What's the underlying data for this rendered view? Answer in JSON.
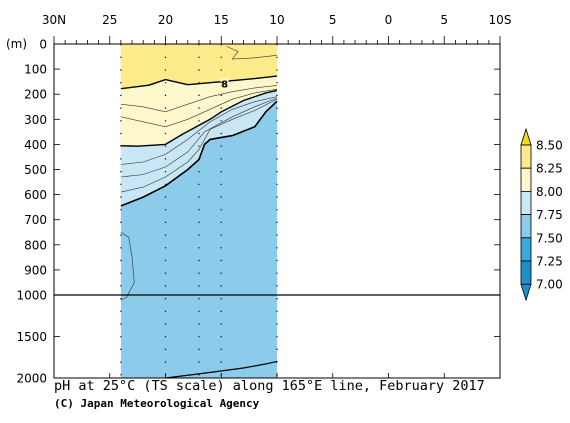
{
  "chart_data": {
    "type": "heatmap",
    "title": "pH at 25°C (TS scale) along 165°E line, February 2017",
    "credit": "(C) Japan Meteorological Agency",
    "y_unit_label": "(m)",
    "x_ticks": [
      "30N",
      "25",
      "20",
      "15",
      "10",
      "5",
      "0",
      "5",
      "10S"
    ],
    "x_range": [
      30,
      -10
    ],
    "y_upper_ticks": [
      0,
      100,
      200,
      300,
      400,
      500,
      600,
      700,
      800,
      900,
      1000
    ],
    "y_lower_ticks": [
      1000,
      1500,
      2000
    ],
    "y_range": [
      0,
      2000
    ],
    "data_extent_lat": [
      24,
      10
    ],
    "station_lats": [
      24,
      20,
      17,
      15,
      10
    ],
    "contour_label": "8",
    "colorbar": {
      "levels": [
        "7.00",
        "7.25",
        "7.50",
        "7.75",
        "8.00",
        "8.25",
        "8.50"
      ],
      "colors": [
        "#1e8fc8",
        "#3aa9dc",
        "#8ccbea",
        "#c8e6f5",
        "#fdf7cc",
        "#fbeb8a",
        "#f5d824"
      ]
    },
    "bands": [
      {
        "range": "8.25-8.50",
        "color": "#fbeb8a",
        "boundary_depth": [
          [
            24,
            178
          ],
          [
            21.5,
            164
          ],
          [
            20,
            142
          ],
          [
            18,
            162
          ],
          [
            15,
            150
          ],
          [
            12,
            138
          ],
          [
            10,
            128
          ]
        ]
      },
      {
        "range": "8.00-8.25",
        "color": "#fdf7cc",
        "boundary_depth": [
          [
            24,
            405
          ],
          [
            22.5,
            407
          ],
          [
            20,
            400
          ],
          [
            18.5,
            360
          ],
          [
            16,
            300
          ],
          [
            15,
            270
          ],
          [
            13,
            225
          ],
          [
            11,
            195
          ],
          [
            10,
            185
          ]
        ]
      },
      {
        "range": "7.75-8.00",
        "color": "#c8e6f5",
        "boundary_depth": [
          [
            24,
            645
          ],
          [
            22,
            610
          ],
          [
            20,
            565
          ],
          [
            18,
            500
          ],
          [
            17,
            460
          ],
          [
            16.5,
            400
          ],
          [
            16,
            380
          ],
          [
            14,
            365
          ],
          [
            12,
            330
          ],
          [
            11,
            270
          ],
          [
            10,
            228
          ]
        ]
      },
      {
        "range": "7.50-7.75",
        "color": "#8ccbea",
        "boundary_depth": []
      }
    ]
  }
}
